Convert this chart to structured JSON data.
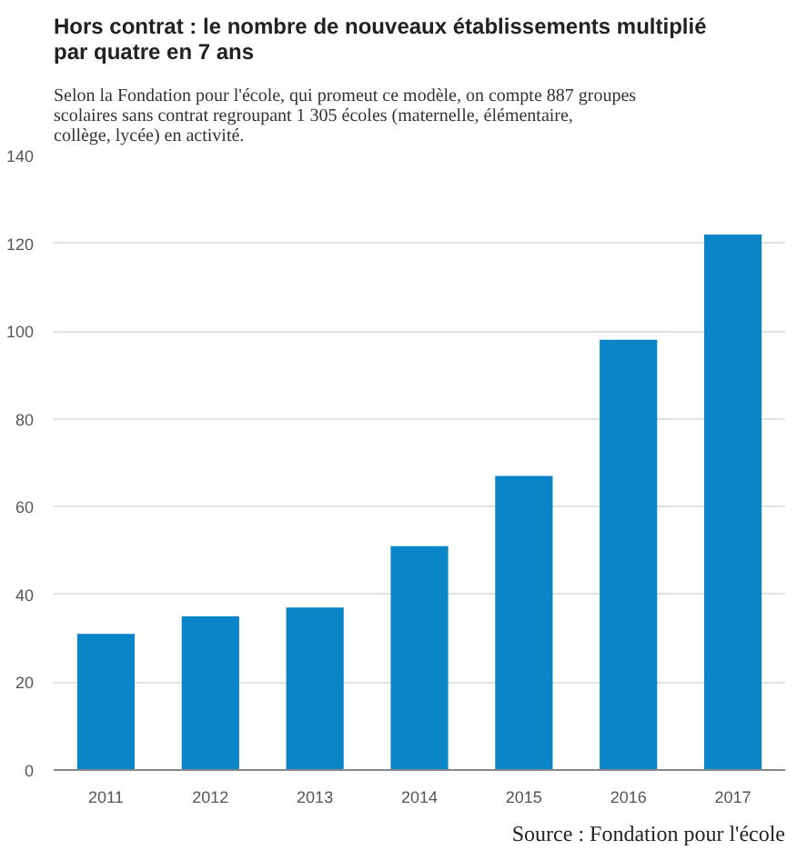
{
  "chart_data": {
    "type": "bar",
    "title": "Hors contrat : le nombre de nouveaux établissements multiplié par quatre en 7 ans",
    "subtitle": "Selon la Fondation pour l'école, qui promeut ce modèle, on compte 887 groupes scolaires sans contrat regroupant 1 305 écoles (maternelle, élémentaire, collège, lycée) en activité.",
    "categories": [
      "2011",
      "2012",
      "2013",
      "2014",
      "2015",
      "2016",
      "2017"
    ],
    "values": [
      31,
      35,
      37,
      51,
      67,
      98,
      122
    ],
    "color": "#0a85c7",
    "ylim": [
      0,
      140
    ],
    "yticks": [
      0,
      20,
      40,
      60,
      80,
      100,
      120,
      140
    ],
    "grid": "y",
    "annotations": [
      "Source : Fondation pour l'école"
    ]
  }
}
